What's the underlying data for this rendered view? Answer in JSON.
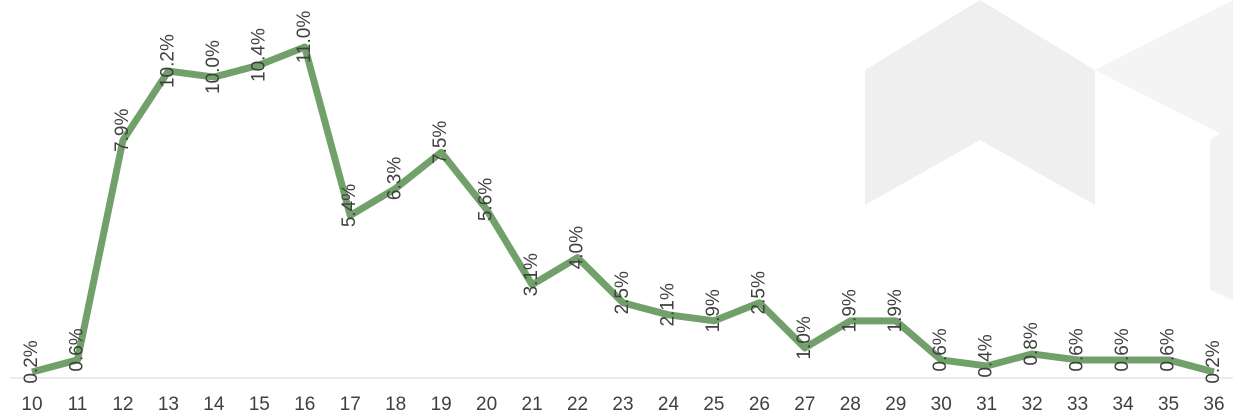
{
  "chart_data": {
    "type": "line",
    "categories": [
      "10",
      "11",
      "12",
      "13",
      "14",
      "15",
      "16",
      "17",
      "18",
      "19",
      "20",
      "21",
      "22",
      "23",
      "24",
      "25",
      "26",
      "27",
      "28",
      "29",
      "30",
      "31",
      "32",
      "33",
      "34",
      "35",
      "36"
    ],
    "series": [
      {
        "color": "#72a06a",
        "values": [
          0.2,
          0.6,
          7.9,
          10.2,
          10.0,
          10.4,
          11.0,
          5.4,
          6.3,
          7.5,
          5.6,
          3.1,
          4.0,
          2.5,
          2.1,
          1.9,
          2.5,
          1.0,
          1.9,
          1.9,
          0.6,
          0.4,
          0.8,
          0.6,
          0.6,
          0.6,
          0.2
        ],
        "value_labels": [
          "0.2%",
          "0.6%",
          "7.9%",
          "10.2%",
          "10.0%",
          "10.4%",
          "11.0%",
          "5.4%",
          "6.3%",
          "7.5%",
          "5.6%",
          "3.1%",
          "4.0%",
          "2.5%",
          "2.1%",
          "1.9%",
          "2.5%",
          "1.0%",
          "1.9%",
          "1.9%",
          "0.6%",
          "0.4%",
          "0.8%",
          "0.6%",
          "0.6%",
          "0.6%",
          "0.2%"
        ]
      }
    ]
  }
}
